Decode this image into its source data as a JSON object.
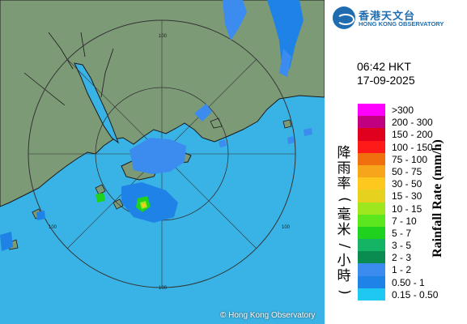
{
  "header": {
    "logo_zh": "香港天文台",
    "logo_en": "HONG KONG OBSERVATORY",
    "time": "06:42 HKT",
    "date": "17-09-2025"
  },
  "map": {
    "range_labels": [
      "100",
      "100",
      "100",
      "100"
    ],
    "copyright": "© Hong Kong Observatory",
    "colors": {
      "sea": "#39b3e5",
      "land": "#7d9a77",
      "coast": "#1a1a1a",
      "range_ring": "#333333"
    }
  },
  "legend": {
    "title_zh": "降雨率(毫米/小時)",
    "title_en": "Rainfall Rate (mm/h)",
    "items": [
      {
        "label": ">300",
        "color": "#ff00ff"
      },
      {
        "label": "200 - 300",
        "color": "#c0007e"
      },
      {
        "label": "150 - 200",
        "color": "#e0001e"
      },
      {
        "label": "100 - 150",
        "color": "#ff1a1a"
      },
      {
        "label": "75 - 100",
        "color": "#f07010"
      },
      {
        "label": "50 - 75",
        "color": "#f7a51a"
      },
      {
        "label": "30 - 50",
        "color": "#ffc81e"
      },
      {
        "label": "15 - 30",
        "color": "#e6d21e"
      },
      {
        "label": "10 - 15",
        "color": "#9ee61e"
      },
      {
        "label": "7 - 10",
        "color": "#5ce61e"
      },
      {
        "label": "5 - 7",
        "color": "#1ed21e"
      },
      {
        "label": "3 - 5",
        "color": "#14b464"
      },
      {
        "label": "2 - 3",
        "color": "#0a8c50"
      },
      {
        "label": "1 - 2",
        "color": "#3c8cf0"
      },
      {
        "label": "0.50 - 1",
        "color": "#1e82e6"
      },
      {
        "label": "0.15 - 0.50",
        "color": "#1ec8f0"
      }
    ]
  }
}
